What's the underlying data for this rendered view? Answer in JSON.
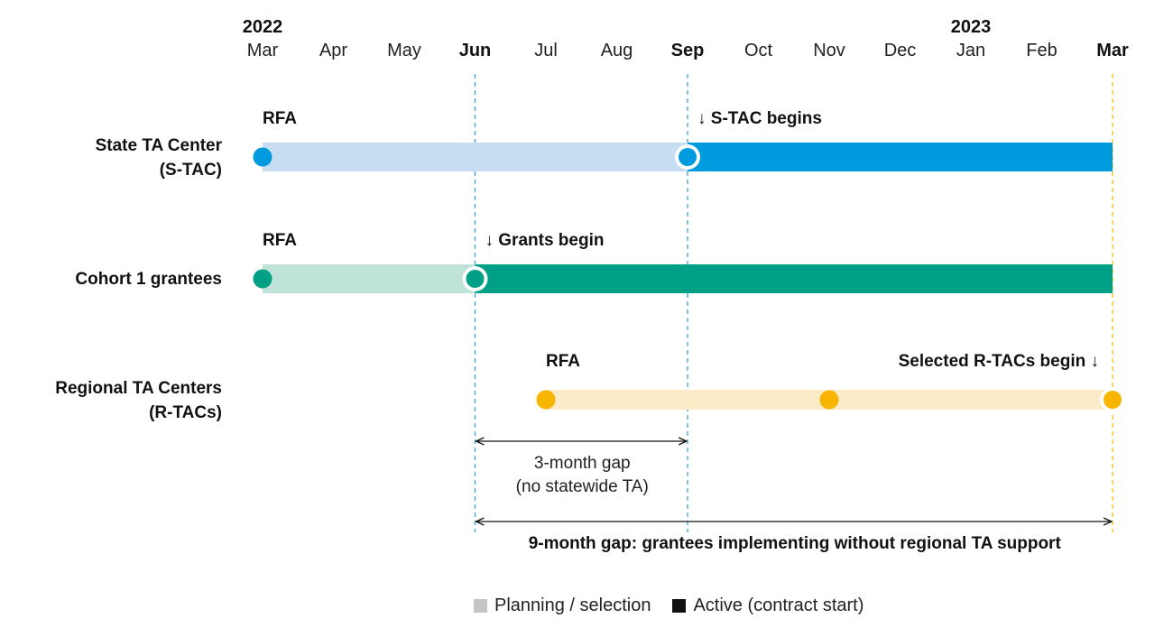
{
  "timeline": {
    "years": [
      {
        "label": "2022",
        "at": 0
      },
      {
        "label": "2023",
        "at": 10
      }
    ],
    "months": [
      {
        "label": "Mar",
        "bold": false
      },
      {
        "label": "Apr",
        "bold": false
      },
      {
        "label": "May",
        "bold": false
      },
      {
        "label": "Jun",
        "bold": true
      },
      {
        "label": "Jul",
        "bold": false
      },
      {
        "label": "Aug",
        "bold": false
      },
      {
        "label": "Sep",
        "bold": true
      },
      {
        "label": "Oct",
        "bold": false
      },
      {
        "label": "Nov",
        "bold": false
      },
      {
        "label": "Dec",
        "bold": false
      },
      {
        "label": "Jan",
        "bold": false
      },
      {
        "label": "Feb",
        "bold": false
      },
      {
        "label": "Mar",
        "bold": true
      }
    ],
    "guide_lines": [
      {
        "at": 3,
        "color": "#2a9fd6"
      },
      {
        "at": 6,
        "color": "#2a9fd6"
      },
      {
        "at": 12,
        "color": "#f5b700"
      }
    ],
    "rows": [
      {
        "id": "stac",
        "label_lines": [
          "State TA Center",
          "(S-TAC)"
        ],
        "light_color": "#c7ddf2",
        "dark_color": "#009ade",
        "planning": [
          0,
          6
        ],
        "active": [
          6,
          12
        ],
        "milestones": [
          {
            "at": 0,
            "style": "plain"
          },
          {
            "at": 6,
            "style": "ring"
          }
        ],
        "annotations": [
          {
            "text": "RFA",
            "at": 0,
            "anchor": "start"
          },
          {
            "text": "↓ S-TAC begins",
            "at": 6,
            "anchor": "start"
          }
        ]
      },
      {
        "id": "cohort1",
        "label_lines": [
          "Cohort 1 grantees"
        ],
        "light_color": "#bfe3d8",
        "dark_color": "#00a087",
        "planning": [
          0,
          3
        ],
        "active": [
          3,
          12
        ],
        "milestones": [
          {
            "at": 0,
            "style": "plain"
          },
          {
            "at": 3,
            "style": "ring"
          }
        ],
        "annotations": [
          {
            "text": "RFA",
            "at": 0,
            "anchor": "start"
          },
          {
            "text": "↓ Grants begin",
            "at": 3,
            "anchor": "start"
          }
        ]
      },
      {
        "id": "rtac",
        "label_lines": [
          "Regional TA Centers",
          "(R-TACs)"
        ],
        "light_color": "#fdebc8",
        "dark_color": "#f7b500",
        "planning": [
          4,
          12
        ],
        "active": null,
        "milestones": [
          {
            "at": 4,
            "style": "plain"
          },
          {
            "at": 8,
            "style": "plain"
          },
          {
            "at": 12,
            "style": "ring"
          }
        ],
        "annotations": [
          {
            "text": "RFA",
            "at": 4,
            "anchor": "start"
          },
          {
            "text": "Selected R-TACs begin ↓",
            "at": 12,
            "anchor": "end"
          }
        ]
      }
    ],
    "gaps": [
      {
        "from": 3,
        "to": 6,
        "lines": [
          "3-month gap",
          "(no statewide TA)"
        ],
        "bold": false
      },
      {
        "from": 3,
        "to": 12,
        "lines": [
          "9-month gap: grantees implementing without regional TA support"
        ],
        "bold": true
      }
    ]
  },
  "legend": {
    "planning_label": "Planning / selection",
    "planning_color": "#c4c4c4",
    "active_label": "Active (contract start)",
    "active_color": "#111111"
  }
}
